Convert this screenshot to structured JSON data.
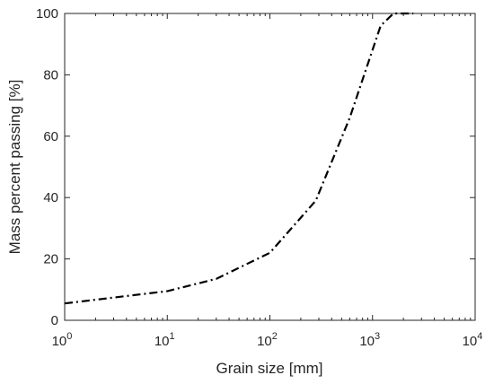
{
  "chart_data": {
    "type": "line",
    "xlabel": "Grain size [mm]",
    "ylabel": "Mass percent passing [%]",
    "xscale": "log",
    "xlim": [
      1,
      10000
    ],
    "ylim": [
      0,
      100
    ],
    "xticks": [
      {
        "base": "10",
        "exp": "0",
        "value": 1
      },
      {
        "base": "10",
        "exp": "1",
        "value": 10
      },
      {
        "base": "10",
        "exp": "2",
        "value": 100
      },
      {
        "base": "10",
        "exp": "3",
        "value": 1000
      },
      {
        "base": "10",
        "exp": "4",
        "value": 10000
      }
    ],
    "yticks": [
      "0",
      "20",
      "40",
      "60",
      "80",
      "100"
    ],
    "grid": false,
    "line_style": "dash-dot",
    "line_color": "#000000",
    "series": [
      {
        "x": [
          1,
          10,
          30,
          100,
          280,
          600,
          1200,
          1600,
          2500
        ],
        "y": [
          5.5,
          9.5,
          13.5,
          22,
          39,
          66,
          96,
          100,
          100
        ]
      }
    ]
  }
}
